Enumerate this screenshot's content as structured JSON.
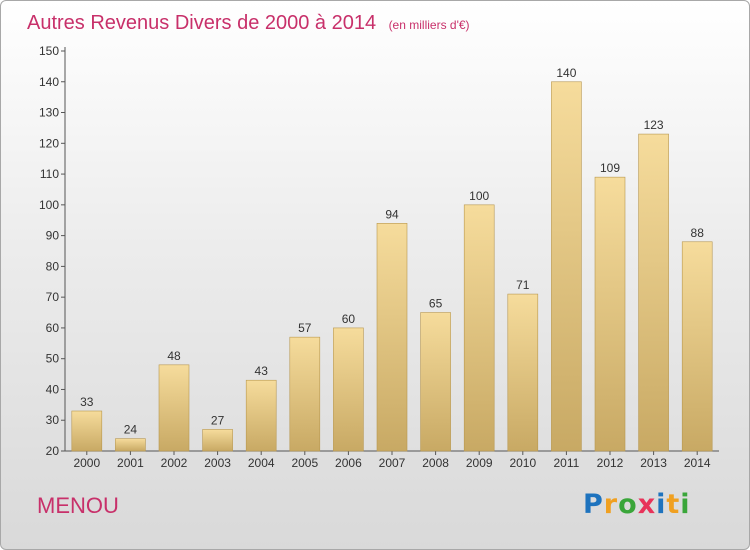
{
  "title": "Autres Revenus Divers de 2000 à 2014",
  "unit_note": "(en milliers d'€)",
  "commune": "MENOU",
  "logo": {
    "letters": [
      "P",
      "r",
      "o",
      "x",
      "i",
      "t",
      "i"
    ],
    "colors": [
      "#1e73be",
      "#f0a020",
      "#3aa63a",
      "#e8335a",
      "#1e73be",
      "#f0a020",
      "#3aa63a"
    ]
  },
  "chart_data": {
    "type": "bar",
    "title": "Autres Revenus Divers de 2000 à 2014",
    "categories": [
      "2000",
      "2001",
      "2002",
      "2003",
      "2004",
      "2005",
      "2006",
      "2007",
      "2008",
      "2009",
      "2010",
      "2011",
      "2012",
      "2013",
      "2014"
    ],
    "values": [
      33,
      24,
      48,
      27,
      43,
      57,
      60,
      94,
      65,
      100,
      71,
      140,
      109,
      123,
      88
    ],
    "data_labels": [
      "33",
      "24",
      "48",
      "27",
      "43",
      "57",
      "60",
      "94",
      "65",
      "100",
      "71",
      "140",
      "109",
      "123",
      "88"
    ],
    "ylim": [
      20,
      150
    ],
    "yticks": [
      20,
      30,
      40,
      50,
      60,
      70,
      80,
      90,
      100,
      110,
      120,
      130,
      140,
      150
    ],
    "grid": false,
    "colors": {
      "bar_top": "#f6dc9c",
      "bar_bottom": "#c8a964",
      "bar_edge": "#b89850"
    }
  }
}
